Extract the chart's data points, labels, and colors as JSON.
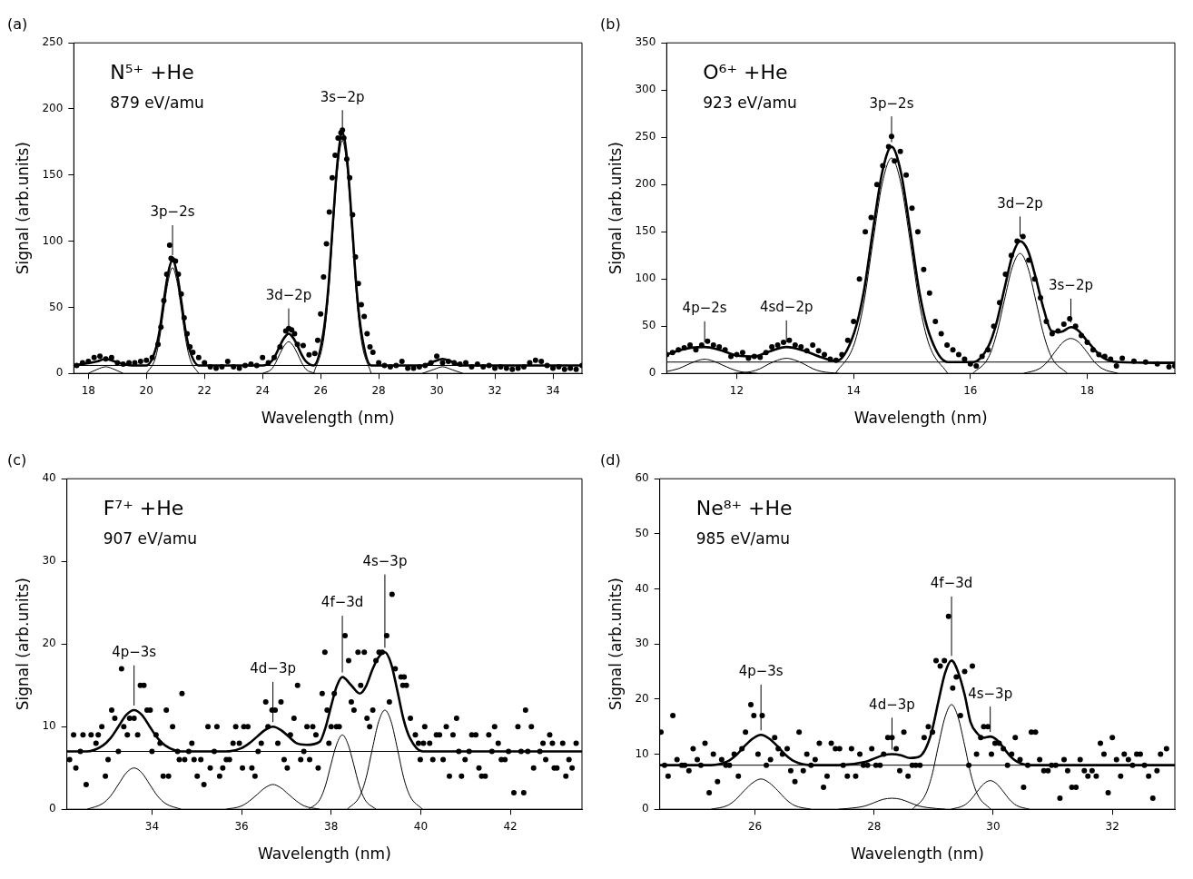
{
  "chart_data": [
    {
      "type": "scatter",
      "title": "(a)",
      "xlabel": "Wavelength (nm)",
      "ylabel": "Signal (arb.units)",
      "xlim": [
        17.5,
        35.0
      ],
      "xticks": [
        18,
        20,
        22,
        24,
        26,
        28,
        30,
        32,
        34
      ],
      "ylim": [
        0,
        250
      ],
      "yticks": [
        0,
        50,
        100,
        150,
        200,
        250
      ],
      "ref_lines": [
        {
          "axis": "y",
          "value": 6
        }
      ],
      "annotations": [
        "N⁵⁺ +He",
        "879 eV/amu",
        {
          "text": "3p−2s",
          "x": 20.9,
          "y": 86
        },
        {
          "text": "3d−2p",
          "x": 24.9,
          "y": 30
        },
        {
          "text": "3s−2p",
          "x": 26.75,
          "y": 182
        }
      ],
      "series": [
        {
          "marker": "circle",
          "color": "#000000",
          "x": [
            17.6,
            17.8,
            18.0,
            18.2,
            18.4,
            18.6,
            18.8,
            19.0,
            19.2,
            19.4,
            19.6,
            19.8,
            20.0,
            20.2,
            20.4,
            20.5,
            20.6,
            20.7,
            20.8,
            20.85,
            20.9,
            21.0,
            21.1,
            21.2,
            21.3,
            21.4,
            21.5,
            21.6,
            21.8,
            22.0,
            22.2,
            22.4,
            22.6,
            22.8,
            23.0,
            23.2,
            23.4,
            23.6,
            23.8,
            24.0,
            24.2,
            24.4,
            24.6,
            24.8,
            24.9,
            25.0,
            25.1,
            25.2,
            25.4,
            25.6,
            25.8,
            25.9,
            26.0,
            26.1,
            26.2,
            26.3,
            26.4,
            26.5,
            26.6,
            26.7,
            26.75,
            26.8,
            26.9,
            27.0,
            27.1,
            27.2,
            27.3,
            27.4,
            27.5,
            27.6,
            27.7,
            27.8,
            28.0,
            28.2,
            28.4,
            28.6,
            28.8,
            29.0,
            29.2,
            29.4,
            29.6,
            29.8,
            30.0,
            30.2,
            30.4,
            30.6,
            30.8,
            31.0,
            31.2,
            31.4,
            31.6,
            31.8,
            32.0,
            32.2,
            32.4,
            32.6,
            32.8,
            33.0,
            33.2,
            33.4,
            33.6,
            33.8,
            34.0,
            34.2,
            34.4,
            34.6,
            34.8,
            35.0
          ],
          "values": [
            6,
            8,
            9,
            12,
            13,
            11,
            12,
            8,
            7,
            8,
            8,
            9,
            10,
            12,
            22,
            35,
            55,
            75,
            97,
            87,
            86,
            85,
            75,
            60,
            42,
            30,
            20,
            16,
            12,
            8,
            5,
            4,
            5,
            9,
            5,
            4,
            6,
            7,
            6,
            12,
            8,
            12,
            20,
            32,
            34,
            33,
            30,
            22,
            21,
            14,
            15,
            25,
            45,
            73,
            98,
            122,
            148,
            165,
            178,
            182,
            184,
            178,
            162,
            148,
            120,
            88,
            68,
            52,
            43,
            30,
            20,
            16,
            8,
            6,
            5,
            6,
            9,
            4,
            4,
            5,
            6,
            8,
            13,
            8,
            9,
            8,
            7,
            8,
            5,
            7,
            5,
            6,
            4,
            5,
            4,
            3,
            4,
            5,
            8,
            10,
            9,
            6,
            4,
            5,
            3,
            4,
            3,
            6
          ]
        },
        {
          "type": "line",
          "color": "#000000",
          "x": [
            17.5,
            18.3,
            18.6,
            18.9,
            19.5,
            20.0,
            20.3,
            20.45,
            20.6,
            20.75,
            20.9,
            21.05,
            21.2,
            21.35,
            21.5,
            21.8,
            24.0,
            24.3,
            24.45,
            24.6,
            24.75,
            24.9,
            25.05,
            25.2,
            25.35,
            25.5,
            25.76,
            26.09,
            26.255,
            26.42,
            26.585,
            26.75,
            26.915,
            27.08,
            27.245,
            27.41,
            27.74,
            29.5,
            29.9,
            30.2,
            30.5,
            30.9,
            35.0
          ],
          "values": [
            6,
            9,
            11,
            9,
            6,
            6,
            17,
            32,
            55,
            76,
            86,
            76,
            55,
            32,
            17,
            6,
            6,
            9,
            14,
            21,
            27,
            30,
            27,
            21,
            14,
            9,
            6,
            30,
            62,
            113,
            161,
            182,
            161,
            113,
            62,
            30,
            6,
            6,
            9,
            11,
            9,
            6,
            6
          ]
        },
        {
          "type": "line",
          "color": "#000000",
          "x": [
            18.0,
            18.3,
            18.6,
            18.9,
            19.2
          ],
          "values": [
            0,
            3,
            5,
            3,
            0
          ]
        },
        {
          "type": "line",
          "color": "#000000",
          "x": [
            20.0,
            20.3,
            20.45,
            20.6,
            20.75,
            20.9,
            21.05,
            21.2,
            21.35,
            21.5,
            21.8
          ],
          "values": [
            0,
            11,
            26,
            49,
            70,
            80,
            70,
            49,
            26,
            11,
            0
          ]
        },
        {
          "type": "line",
          "color": "#000000",
          "x": [
            24.0,
            24.3,
            24.45,
            24.6,
            24.75,
            24.9,
            25.05,
            25.2,
            25.35,
            25.5,
            25.8
          ],
          "values": [
            0,
            3,
            8,
            15,
            21,
            24,
            21,
            15,
            8,
            3,
            0
          ]
        },
        {
          "type": "line",
          "color": "#000000",
          "x": [
            25.76,
            26.09,
            26.255,
            26.42,
            26.585,
            26.75,
            26.915,
            27.08,
            27.245,
            27.41,
            27.74
          ],
          "values": [
            0,
            24,
            56,
            107,
            155,
            176,
            155,
            107,
            56,
            24,
            0
          ]
        },
        {
          "type": "line",
          "color": "#000000",
          "x": [
            29.5,
            29.9,
            30.2,
            30.5,
            30.9
          ],
          "values": [
            0,
            3,
            5,
            3,
            0
          ]
        }
      ]
    },
    {
      "type": "scatter",
      "title": "(b)",
      "xlabel": "Wavelength (nm)",
      "ylabel": "Signal (arb.units)",
      "xlim": [
        10.8,
        19.5
      ],
      "xticks": [
        12,
        14,
        16,
        18
      ],
      "ylim": [
        0,
        350
      ],
      "yticks": [
        0,
        50,
        100,
        150,
        200,
        250,
        300,
        350
      ],
      "ref_lines": [
        {
          "axis": "y",
          "value": 12
        }
      ],
      "annotations": [
        "O⁶⁺ +He",
        "923 eV/amu",
        {
          "text": "4p−2s",
          "x": 11.45,
          "y": 28
        },
        {
          "text": "4sd−2p",
          "x": 12.85,
          "y": 28
        },
        {
          "text": "3p−2s",
          "x": 14.65,
          "y": 240
        },
        {
          "text": "3d−2p",
          "x": 16.85,
          "y": 140
        },
        {
          "text": "3s−2p",
          "x": 17.72,
          "y": 49
        }
      ],
      "series": [
        {
          "marker": "circle",
          "color": "#000000",
          "x": [
            10.8,
            10.9,
            11.0,
            11.1,
            11.2,
            11.3,
            11.4,
            11.5,
            11.6,
            11.7,
            11.8,
            11.9,
            12.0,
            12.1,
            12.2,
            12.3,
            12.4,
            12.5,
            12.6,
            12.7,
            12.8,
            12.9,
            13.0,
            13.1,
            13.2,
            13.3,
            13.4,
            13.5,
            13.6,
            13.7,
            13.8,
            13.9,
            14.0,
            14.1,
            14.2,
            14.3,
            14.4,
            14.5,
            14.6,
            14.65,
            14.7,
            14.8,
            14.9,
            15.0,
            15.1,
            15.2,
            15.3,
            15.4,
            15.5,
            15.6,
            15.7,
            15.8,
            15.9,
            16.0,
            16.1,
            16.2,
            16.3,
            16.4,
            16.5,
            16.6,
            16.7,
            16.8,
            16.9,
            17.0,
            17.1,
            17.2,
            17.3,
            17.4,
            17.5,
            17.6,
            17.7,
            17.8,
            17.9,
            18.0,
            18.1,
            18.2,
            18.3,
            18.4,
            18.5,
            18.6,
            18.8,
            19.0,
            19.2,
            19.4,
            19.5
          ],
          "values": [
            20,
            22,
            25,
            27,
            30,
            25,
            30,
            34,
            30,
            28,
            25,
            18,
            20,
            22,
            16,
            18,
            17,
            22,
            28,
            30,
            33,
            35,
            30,
            28,
            24,
            30,
            24,
            20,
            15,
            14,
            20,
            35,
            55,
            100,
            150,
            165,
            200,
            220,
            240,
            251,
            225,
            235,
            210,
            175,
            150,
            110,
            85,
            55,
            42,
            30,
            25,
            20,
            15,
            10,
            8,
            18,
            25,
            50,
            75,
            105,
            125,
            140,
            145,
            120,
            100,
            80,
            55,
            42,
            45,
            52,
            58,
            50,
            40,
            33,
            25,
            20,
            18,
            15,
            8,
            16,
            13,
            12,
            10,
            7,
            8
          ]
        },
        {
          "type": "line",
          "color": "#000000",
          "x": [
            10.8,
            11.0,
            11.2,
            11.45,
            11.7,
            12.0,
            12.3,
            12.55,
            12.85,
            13.15,
            13.45,
            13.7,
            14.01,
            14.17,
            14.33,
            14.49,
            14.65,
            14.81,
            14.97,
            15.13,
            15.29,
            15.61,
            16.04,
            16.31,
            16.445,
            16.58,
            16.715,
            16.85,
            16.985,
            17.12,
            17.255,
            17.39,
            17.55,
            17.72,
            17.855,
            17.99,
            18.26,
            18.53,
            19.5
          ],
          "values": [
            20,
            24,
            27,
            28,
            25,
            19,
            18,
            23,
            28,
            24,
            17,
            13,
            43,
            85,
            151,
            213,
            240,
            213,
            151,
            85,
            43,
            12,
            12,
            29,
            53,
            89,
            124,
            140,
            130,
            101,
            68,
            45,
            44,
            49,
            45,
            35,
            17,
            12,
            11
          ]
        },
        {
          "type": "line",
          "color": "#000000",
          "x": [
            10.8,
            11.0,
            11.15,
            11.3,
            11.45,
            11.6,
            11.75,
            11.9,
            12.05,
            12.35
          ],
          "values": [
            2,
            5,
            9,
            13,
            15,
            13,
            9,
            5,
            2,
            0
          ]
        },
        {
          "type": "line",
          "color": "#000000",
          "x": [
            11.95,
            12.25,
            12.4,
            12.55,
            12.7,
            12.85,
            13.0,
            13.15,
            13.3,
            13.45,
            13.75
          ],
          "values": [
            0,
            2,
            5,
            10,
            14,
            16,
            14,
            10,
            5,
            2,
            0
          ]
        },
        {
          "type": "line",
          "color": "#000000",
          "x": [
            13.69,
            14.01,
            14.17,
            14.33,
            14.49,
            14.65,
            14.81,
            14.97,
            15.13,
            15.29,
            15.61
          ],
          "values": [
            0,
            31,
            73,
            139,
            201,
            228,
            201,
            139,
            73,
            31,
            0
          ]
        },
        {
          "type": "line",
          "color": "#000000",
          "x": [
            16.04,
            16.31,
            16.445,
            16.58,
            16.715,
            16.85,
            16.985,
            17.12,
            17.255,
            17.39,
            17.66
          ],
          "values": [
            0,
            17,
            41,
            77,
            112,
            127,
            112,
            77,
            41,
            17,
            0
          ]
        },
        {
          "type": "line",
          "color": "#000000",
          "x": [
            16.91,
            17.18,
            17.315,
            17.45,
            17.585,
            17.72,
            17.855,
            17.99,
            18.125,
            18.26,
            18.53
          ],
          "values": [
            0,
            5,
            12,
            23,
            33,
            37,
            33,
            23,
            12,
            5,
            0
          ]
        }
      ]
    },
    {
      "type": "scatter",
      "title": "(c)",
      "xlabel": "Wavelength (nm)",
      "ylabel": "Signal (arb.units)",
      "xlim": [
        32.1,
        43.6
      ],
      "xticks": [
        34,
        36,
        38,
        40,
        42
      ],
      "ylim": [
        0,
        40
      ],
      "yticks": [
        0,
        10,
        20,
        30,
        40
      ],
      "ref_lines": [
        {
          "axis": "y",
          "value": 7
        }
      ],
      "annotations": [
        "F⁷⁺ +He",
        "907 eV/amu",
        {
          "text": "4p−3s",
          "x": 33.6,
          "y": 12
        },
        {
          "text": "4d−3p",
          "x": 36.7,
          "y": 10
        },
        {
          "text": "4f−3d",
          "x": 38.25,
          "y": 16
        },
        {
          "text": "4s−3p",
          "x": 39.2,
          "y": 19
        }
      ],
      "series": [
        {
          "marker": "circle",
          "color": "#000000",
          "x": [
            32.16,
            32.25,
            32.3,
            32.4,
            32.46,
            32.53,
            32.64,
            32.75,
            32.8,
            32.88,
            32.96,
            33.02,
            33.1,
            33.17,
            33.25,
            33.32,
            33.37,
            33.45,
            33.5,
            33.6,
            33.68,
            33.74,
            33.82,
            33.89,
            33.96,
            34.0,
            34.09,
            34.18,
            34.25,
            34.32,
            34.37,
            34.46,
            34.57,
            34.61,
            34.67,
            34.73,
            34.82,
            34.89,
            34.94,
            35.01,
            35.09,
            35.16,
            35.25,
            35.3,
            35.39,
            35.45,
            35.51,
            35.58,
            35.66,
            35.73,
            35.81,
            35.87,
            35.95,
            36.02,
            36.05,
            36.14,
            36.23,
            36.3,
            36.37,
            36.44,
            36.54,
            36.59,
            36.68,
            36.75,
            36.81,
            36.88,
            36.95,
            37.02,
            37.09,
            37.17,
            37.25,
            37.32,
            37.39,
            37.46,
            37.52,
            37.59,
            37.66,
            37.71,
            37.8,
            37.86,
            37.91,
            37.95,
            38.0,
            38.07,
            38.12,
            38.18,
            38.31,
            38.39,
            38.45,
            38.51,
            38.6,
            38.66,
            38.74,
            38.8,
            38.86,
            38.93,
            39.0,
            39.07,
            39.14,
            39.24,
            39.3,
            39.36,
            39.43,
            39.56,
            39.6,
            39.63,
            39.68,
            39.77,
            39.88,
            39.95,
            39.99,
            40.06,
            40.09,
            40.2,
            40.27,
            40.35,
            40.42,
            40.5,
            40.57,
            40.64,
            40.72,
            40.8,
            40.85,
            40.91,
            40.99,
            41.08,
            41.14,
            41.23,
            41.3,
            41.36,
            41.44,
            41.52,
            41.59,
            41.65,
            41.73,
            41.8,
            41.88,
            41.96,
            42.08,
            42.17,
            42.24,
            42.3,
            42.34,
            42.39,
            42.47,
            42.52,
            42.66,
            42.73,
            42.79,
            42.88,
            42.94,
            42.98,
            43.04,
            43.17,
            43.24,
            43.31,
            43.38,
            43.47
          ],
          "values": [
            6,
            9,
            5,
            7,
            9,
            3,
            9,
            8,
            9,
            10,
            4,
            6,
            12,
            11,
            7,
            17,
            10,
            9,
            11,
            11,
            9,
            15,
            15,
            12,
            12,
            7,
            9,
            8,
            4,
            12,
            4,
            10,
            7,
            6,
            14,
            6,
            7,
            8,
            6,
            4,
            6,
            3,
            10,
            5,
            7,
            10,
            4,
            5,
            6,
            6,
            8,
            10,
            8,
            5,
            10,
            10,
            5,
            4,
            7,
            8,
            13,
            10,
            12,
            12,
            8,
            13,
            6,
            5,
            9,
            11,
            15,
            6,
            7,
            10,
            6,
            10,
            9,
            5,
            14,
            19,
            12,
            8,
            10,
            14,
            10,
            10,
            21,
            18,
            13,
            12,
            19,
            15,
            19,
            11,
            10,
            12,
            18,
            19,
            19,
            21,
            13,
            26,
            17,
            16,
            15,
            16,
            15,
            11,
            9,
            8,
            6,
            8,
            10,
            8,
            6,
            9,
            9,
            6,
            10,
            4,
            9,
            11,
            7,
            4,
            6,
            7,
            9,
            9,
            5,
            4,
            4,
            9,
            7,
            10,
            8,
            6,
            6,
            7,
            2,
            10,
            7,
            2,
            12,
            7,
            10,
            5,
            7,
            8,
            6,
            9,
            8,
            5,
            5,
            8,
            4,
            6,
            5,
            8
          ]
        },
        {
          "type": "line",
          "color": "#000000",
          "x": [
            32.1,
            32.55,
            32.9,
            33.075,
            33.25,
            33.425,
            33.6,
            33.775,
            33.95,
            34.125,
            34.3,
            34.65,
            35.65,
            36.0,
            36.175,
            36.35,
            36.525,
            36.7,
            36.875,
            37.05,
            37.225,
            37.45,
            37.75,
            37.875,
            38.0,
            38.125,
            38.25,
            38.45,
            38.64,
            38.78,
            38.92,
            39.06,
            39.2,
            39.34,
            39.48,
            39.62,
            39.76,
            40.04,
            43.6
          ],
          "values": [
            7,
            7,
            7.7,
            8.6,
            10,
            11.4,
            12,
            11.4,
            10,
            8.6,
            7.7,
            7,
            7,
            7.4,
            8,
            8.8,
            9.6,
            10,
            9.6,
            8.8,
            8,
            7.8,
            8.2,
            9.9,
            12.5,
            14.9,
            16,
            15,
            14,
            14.9,
            16.9,
            18.4,
            19,
            17.6,
            14.3,
            10.8,
            8.6,
            7,
            7
          ]
        },
        {
          "type": "line",
          "color": "#000000",
          "x": [
            32.55,
            32.9,
            33.075,
            33.25,
            33.425,
            33.6,
            33.775,
            33.95,
            34.125,
            34.3,
            34.65
          ],
          "values": [
            0,
            0.7,
            1.6,
            3,
            4.4,
            5,
            4.4,
            3,
            1.6,
            0.7,
            0
          ]
        },
        {
          "type": "line",
          "color": "#000000",
          "x": [
            35.65,
            36.0,
            36.175,
            36.35,
            36.525,
            36.7,
            36.875,
            37.05,
            37.225,
            37.4,
            37.75
          ],
          "values": [
            0,
            0.4,
            1,
            1.8,
            2.6,
            3,
            2.6,
            1.8,
            1,
            0.4,
            0
          ]
        },
        {
          "type": "line",
          "color": "#000000",
          "x": [
            37.5,
            37.75,
            37.875,
            38.0,
            38.125,
            38.25,
            38.375,
            38.5,
            38.625,
            38.75,
            39.0
          ],
          "values": [
            0,
            1.2,
            2.9,
            5.5,
            7.9,
            9,
            7.9,
            5.5,
            2.9,
            1.2,
            0
          ]
        },
        {
          "type": "line",
          "color": "#000000",
          "x": [
            38.36,
            38.64,
            38.78,
            38.92,
            39.06,
            39.2,
            39.34,
            39.48,
            39.62,
            39.76,
            40.04
          ],
          "values": [
            0,
            1.6,
            3.8,
            7.3,
            10.6,
            12,
            10.6,
            7.3,
            3.8,
            1.6,
            0
          ]
        }
      ]
    },
    {
      "type": "scatter",
      "title": "(d)",
      "xlabel": "Wavelength (nm)",
      "ylabel": "Signal (arb.units)",
      "xlim": [
        24.4,
        33.05
      ],
      "xticks": [
        26,
        28,
        30,
        32
      ],
      "ylim": [
        0,
        60
      ],
      "yticks": [
        0,
        10,
        20,
        30,
        40,
        50,
        60
      ],
      "ref_lines": [
        {
          "axis": "y",
          "value": 8
        }
      ],
      "annotations": [
        "Ne⁸⁺ +He",
        "985 eV/amu",
        {
          "text": "4p−3s",
          "x": 26.1,
          "y": 13.5
        },
        {
          "text": "4d−3p",
          "x": 28.3,
          "y": 10
        },
        {
          "text": "4f−3d",
          "x": 29.3,
          "y": 27
        },
        {
          "text": "4s−3p",
          "x": 29.95,
          "y": 13.2
        }
      ],
      "series": [
        {
          "marker": "circle",
          "color": "#000000",
          "x": [
            24.42,
            24.48,
            24.54,
            24.62,
            24.69,
            24.77,
            24.82,
            24.89,
            24.96,
            25.03,
            25.09,
            25.16,
            25.23,
            25.3,
            25.37,
            25.44,
            25.51,
            25.57,
            25.65,
            25.72,
            25.78,
            25.84,
            25.93,
            25.98,
            26.05,
            26.12,
            26.19,
            26.26,
            26.33,
            26.39,
            26.46,
            26.54,
            26.6,
            26.67,
            26.74,
            26.81,
            26.87,
            26.94,
            27.01,
            27.08,
            27.15,
            27.21,
            27.28,
            27.35,
            27.42,
            27.48,
            27.55,
            27.62,
            27.69,
            27.76,
            27.82,
            27.89,
            27.96,
            28.03,
            28.1,
            28.16,
            28.23,
            28.3,
            28.37,
            28.43,
            28.5,
            28.57,
            28.64,
            28.7,
            28.77,
            28.84,
            28.91,
            28.98,
            29.04,
            29.11,
            29.18,
            29.25,
            29.32,
            29.38,
            29.45,
            29.52,
            29.59,
            29.65,
            29.72,
            29.79,
            29.84,
            29.91,
            29.97,
            30.03,
            30.1,
            30.17,
            30.24,
            30.31,
            30.37,
            30.45,
            30.51,
            30.58,
            30.64,
            30.71,
            30.78,
            30.85,
            30.92,
            30.98,
            31.05,
            31.12,
            31.19,
            31.25,
            31.32,
            31.39,
            31.46,
            31.53,
            31.59,
            31.66,
            31.73,
            31.8,
            31.86,
            31.93,
            32.0,
            32.07,
            32.14,
            32.2,
            32.27,
            32.34,
            32.41,
            32.47,
            32.54,
            32.61,
            32.68,
            32.75,
            32.81,
            32.91
          ],
          "values": [
            14,
            8,
            6,
            17,
            9,
            8,
            8,
            7,
            11,
            9,
            8,
            12,
            3,
            10,
            5,
            9,
            8,
            8,
            10,
            6,
            11,
            14,
            19,
            17,
            10,
            17,
            8,
            9,
            13,
            11,
            10,
            11,
            7,
            5,
            14,
            7,
            10,
            8,
            9,
            12,
            4,
            6,
            12,
            11,
            11,
            8,
            6,
            11,
            6,
            10,
            8,
            8,
            11,
            8,
            8,
            10,
            13,
            13,
            11,
            7,
            14,
            6,
            8,
            8,
            8,
            13,
            15,
            14,
            27,
            26,
            27,
            35,
            22,
            24,
            17,
            25,
            8,
            26,
            10,
            13,
            15,
            15,
            10,
            12,
            12,
            11,
            8,
            10,
            13,
            9,
            4,
            8,
            14,
            14,
            9,
            7,
            7,
            8,
            8,
            2,
            9,
            7,
            4,
            4,
            9,
            7,
            6,
            7,
            6,
            12,
            10,
            3,
            13,
            9,
            6,
            10,
            9,
            8,
            10,
            10,
            8,
            6,
            2,
            7,
            10,
            11
          ]
        },
        {
          "type": "line",
          "color": "#000000",
          "x": [
            24.4,
            25.26,
            25.54,
            25.68,
            25.82,
            25.96,
            26.1,
            26.24,
            26.38,
            26.52,
            26.66,
            26.94,
            27.4,
            27.85,
            28.0,
            28.15,
            28.3,
            28.45,
            28.6,
            28.75,
            28.86,
            28.97,
            29.08,
            29.19,
            29.3,
            29.41,
            29.52,
            29.62,
            29.73,
            29.84,
            29.95,
            30.06,
            30.17,
            30.28,
            30.39,
            30.61,
            33.05
          ],
          "values": [
            8,
            8,
            8.7,
            9.8,
            11.4,
            12.8,
            13.5,
            12.8,
            11.4,
            9.8,
            8.7,
            8,
            8,
            8.6,
            9.2,
            9.8,
            10,
            9.8,
            9.3,
            9.5,
            10.9,
            14.2,
            19.6,
            24.7,
            27,
            24.9,
            20.8,
            15.8,
            13.8,
            13,
            13.2,
            12.6,
            11.2,
            9.7,
            8.7,
            8,
            8
          ]
        },
        {
          "type": "line",
          "color": "#000000",
          "x": [
            25.26,
            25.54,
            25.68,
            25.82,
            25.96,
            26.1,
            26.24,
            26.38,
            26.52,
            26.66,
            26.94
          ],
          "values": [
            0,
            0.7,
            1.8,
            3.4,
            4.8,
            5.5,
            4.8,
            3.4,
            1.8,
            0.7,
            0
          ]
        },
        {
          "type": "line",
          "color": "#000000",
          "x": [
            27.4,
            27.7,
            27.85,
            28.0,
            28.15,
            28.3,
            28.45,
            28.6,
            28.75,
            28.9,
            29.2
          ],
          "values": [
            0,
            0.3,
            0.6,
            1.2,
            1.8,
            2,
            1.8,
            1.2,
            0.6,
            0.3,
            0
          ]
        },
        {
          "type": "line",
          "color": "#000000",
          "x": [
            28.64,
            28.86,
            28.97,
            29.08,
            29.19,
            29.3,
            29.41,
            29.52,
            29.63,
            29.74,
            29.96
          ],
          "values": [
            0,
            2.6,
            6.1,
            11.6,
            16.7,
            19,
            16.7,
            11.6,
            6.1,
            2.6,
            0
          ]
        },
        {
          "type": "line",
          "color": "#000000",
          "x": [
            29.29,
            29.51,
            29.62,
            29.73,
            29.84,
            29.95,
            30.06,
            30.17,
            30.28,
            30.39,
            30.61
          ],
          "values": [
            0,
            0.7,
            1.7,
            3.2,
            4.6,
            5.2,
            4.6,
            3.2,
            1.7,
            0.7,
            0
          ]
        }
      ]
    }
  ]
}
